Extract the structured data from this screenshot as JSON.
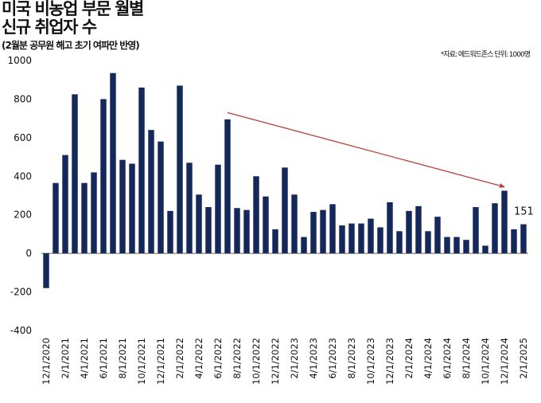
{
  "header": {
    "title_line1": "미국 비농업 부문 월별",
    "title_line2": "신규 취업자 수",
    "subtitle": "(2월분 공무원 해고 초기 여파만 반영)",
    "source": "*자료: 에드워드존스 단위: 1000명"
  },
  "chart_data": {
    "type": "bar",
    "title": "미국 비농업 부문 월별 신규 취업자 수",
    "subtitle": "(2월분 공무원 해고 초기 여파만 반영)",
    "xlabel": "",
    "ylabel": "",
    "ylim": [
      -400,
      1000
    ],
    "yticks": [
      -400,
      -200,
      0,
      200,
      400,
      600,
      800,
      1000
    ],
    "bar_color": "#14285a",
    "trend_color": "#b8403a",
    "categories": [
      "12/1/2020",
      "1/1/2021",
      "2/1/2021",
      "3/1/2021",
      "4/1/2021",
      "5/1/2021",
      "6/1/2021",
      "7/1/2021",
      "8/1/2021",
      "9/1/2021",
      "10/1/2021",
      "11/1/2021",
      "12/1/2021",
      "1/1/2022",
      "2/1/2022",
      "3/1/2022",
      "4/1/2022",
      "5/1/2022",
      "6/1/2022",
      "7/1/2022",
      "8/1/2022",
      "9/1/2022",
      "10/1/2022",
      "11/1/2022",
      "12/1/2022",
      "1/1/2023",
      "2/1/2023",
      "3/1/2023",
      "4/1/2023",
      "5/1/2023",
      "6/1/2023",
      "7/1/2023",
      "8/1/2023",
      "9/1/2023",
      "10/1/2023",
      "11/1/2023",
      "12/1/2023",
      "1/1/2024",
      "2/1/2024",
      "3/1/2024",
      "4/1/2024",
      "5/1/2024",
      "6/1/2024",
      "7/1/2024",
      "8/1/2024",
      "9/1/2024",
      "10/1/2024",
      "11/1/2024",
      "12/1/2024",
      "1/1/2025",
      "2/1/2025"
    ],
    "x_tick_labels": [
      "12/1/2020",
      "2/1/2021",
      "4/1/2021",
      "6/1/2021",
      "8/1/2021",
      "10/1/2021",
      "12/1/2021",
      "2/1/2022",
      "4/1/2022",
      "6/1/2022",
      "8/1/2022",
      "10/1/2022",
      "12/1/2022",
      "2/1/2023",
      "4/1/2023",
      "6/1/2023",
      "8/1/2023",
      "10/1/2023",
      "12/1/2023",
      "2/1/2024",
      "4/1/2024",
      "6/1/2024",
      "8/1/2024",
      "10/1/2024",
      "12/1/2024",
      "2/1/2025"
    ],
    "values": [
      -180,
      365,
      510,
      825,
      365,
      420,
      800,
      935,
      485,
      465,
      860,
      640,
      580,
      220,
      870,
      470,
      305,
      240,
      460,
      695,
      235,
      225,
      400,
      295,
      125,
      445,
      305,
      85,
      215,
      225,
      255,
      145,
      155,
      155,
      180,
      135,
      265,
      115,
      220,
      245,
      115,
      190,
      85,
      85,
      70,
      240,
      40,
      260,
      325,
      125,
      151
    ],
    "data_labels": [
      {
        "category": "2/1/2025",
        "text": "151"
      }
    ],
    "trend_arrow": {
      "from": {
        "category": "7/1/2022",
        "y": 730
      },
      "to": {
        "category": "12/1/2024",
        "y": 345
      }
    },
    "grid": false,
    "legend": "none"
  }
}
